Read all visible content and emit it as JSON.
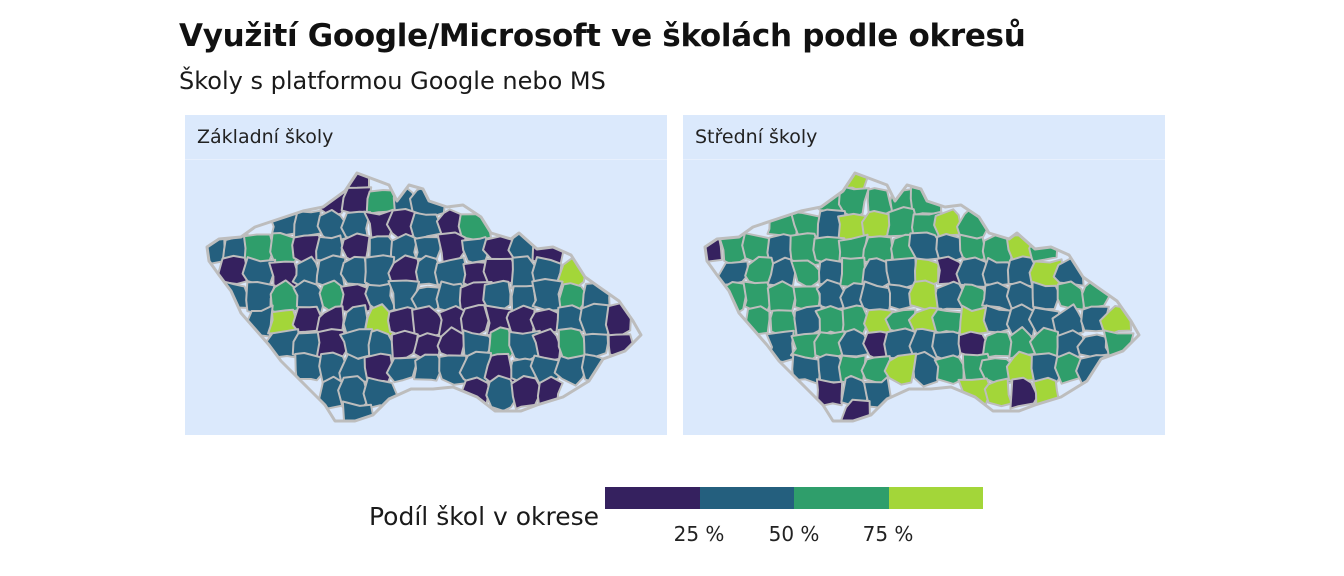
{
  "title": "Využití Google/Microsoft ve školách podle okresů",
  "subtitle": "Školy s platformou Google nebo MS",
  "panels": [
    {
      "label": "Základní školy"
    },
    {
      "label": "Střední školy"
    }
  ],
  "legend": {
    "title": "Podíl škol v okrese",
    "bins": [
      {
        "range": "0–25 %",
        "color": "#35215f"
      },
      {
        "range": "25–50 %",
        "color": "#245f7e"
      },
      {
        "range": "50–75 %",
        "color": "#2f9e6b"
      },
      {
        "range": "75–100 %",
        "color": "#a3d639"
      }
    ],
    "ticks": [
      "25 %",
      "50 %",
      "75 %"
    ]
  },
  "colors": {
    "background": "#dbe9fc",
    "border": "#bdbdbd"
  },
  "chart_data": {
    "type": "choropleth",
    "region": "Czech Republic districts (okresy)",
    "value": "share of schools using Google or Microsoft platform",
    "scale": "binned, 4 classes",
    "facets": [
      "Základní školy",
      "Střední školy"
    ]
  }
}
